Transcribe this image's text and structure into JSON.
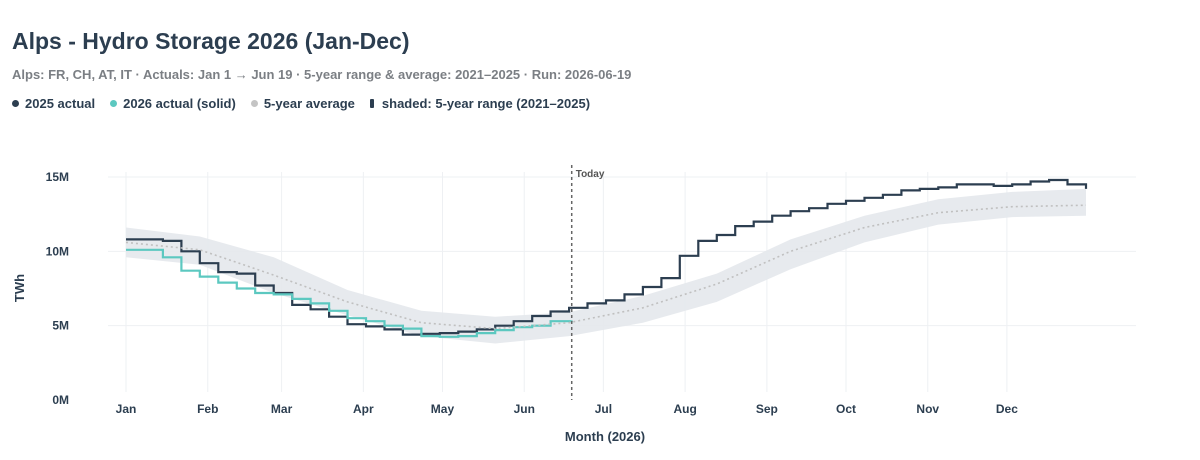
{
  "header": {
    "title": "Alps - Hydro Storage 2026 (Jan-Dec)",
    "subtitle": "Alps: FR, CH, AT, IT  ·  Actuals: Jan 1 → Jun 19  ·  5-year range & average: 2021–2025  ·  Run: 2026-06-19"
  },
  "legend": {
    "items": [
      {
        "label": "2025 actual",
        "color": "#2c3e50"
      },
      {
        "label": "2026 actual (solid)",
        "color": "#5cc8c0"
      },
      {
        "label": "5-year average",
        "color": "#c4c4c4"
      },
      {
        "label": "shaded: 5-year range (2021–2025)",
        "color": "#2c3e50"
      }
    ]
  },
  "colors": {
    "actual_2025": "#2c3e50",
    "actual_2026": "#5cc8c0",
    "average": "#c0c0c0",
    "range": "#e4e8ec",
    "grid": "#eef0f3",
    "today": "#666666"
  },
  "chart_data": {
    "type": "line",
    "xlabel": "Month (2026)",
    "ylabel": "TWh",
    "x_ticks": [
      "Jan",
      "Feb",
      "Mar",
      "Apr",
      "May",
      "Jun",
      "Jul",
      "Aug",
      "Sep",
      "Oct",
      "Nov",
      "Dec"
    ],
    "y_ticks": [
      "0M",
      "5M",
      "10M",
      "15M"
    ],
    "ylim": [
      0,
      15000000
    ],
    "xlim": [
      "2026-01-01",
      "2026-12-31"
    ],
    "grid": true,
    "today": {
      "date": "2026-06-19",
      "label": "Today"
    },
    "series": [
      {
        "name": "2025 actual",
        "step": true,
        "points": [
          [
            "2026-01-01",
            10800000
          ],
          [
            "2026-01-08",
            10800000
          ],
          [
            "2026-01-15",
            10700000
          ],
          [
            "2026-01-22",
            10000000
          ],
          [
            "2026-01-29",
            9200000
          ],
          [
            "2026-02-05",
            8600000
          ],
          [
            "2026-02-12",
            8500000
          ],
          [
            "2026-02-19",
            7700000
          ],
          [
            "2026-02-26",
            7200000
          ],
          [
            "2026-03-05",
            6400000
          ],
          [
            "2026-03-12",
            6100000
          ],
          [
            "2026-03-19",
            5600000
          ],
          [
            "2026-03-26",
            5100000
          ],
          [
            "2026-04-02",
            4950000
          ],
          [
            "2026-04-09",
            4750000
          ],
          [
            "2026-04-16",
            4400000
          ],
          [
            "2026-04-23",
            4450000
          ],
          [
            "2026-04-30",
            4500000
          ],
          [
            "2026-05-07",
            4600000
          ],
          [
            "2026-05-14",
            4750000
          ],
          [
            "2026-05-21",
            5000000
          ],
          [
            "2026-05-28",
            5300000
          ],
          [
            "2026-06-04",
            5650000
          ],
          [
            "2026-06-11",
            5950000
          ],
          [
            "2026-06-18",
            6200000
          ],
          [
            "2026-06-25",
            6500000
          ],
          [
            "2026-07-02",
            6700000
          ],
          [
            "2026-07-09",
            7100000
          ],
          [
            "2026-07-16",
            7600000
          ],
          [
            "2026-07-23",
            8200000
          ],
          [
            "2026-07-30",
            9700000
          ],
          [
            "2026-08-06",
            10700000
          ],
          [
            "2026-08-13",
            11100000
          ],
          [
            "2026-08-20",
            11700000
          ],
          [
            "2026-08-27",
            12000000
          ],
          [
            "2026-09-03",
            12400000
          ],
          [
            "2026-09-10",
            12700000
          ],
          [
            "2026-09-17",
            12900000
          ],
          [
            "2026-09-24",
            13200000
          ],
          [
            "2026-10-01",
            13400000
          ],
          [
            "2026-10-08",
            13600000
          ],
          [
            "2026-10-15",
            13800000
          ],
          [
            "2026-10-22",
            14100000
          ],
          [
            "2026-10-29",
            14200000
          ],
          [
            "2026-11-05",
            14300000
          ],
          [
            "2026-11-12",
            14500000
          ],
          [
            "2026-11-19",
            14500000
          ],
          [
            "2026-11-26",
            14400000
          ],
          [
            "2026-12-03",
            14500000
          ],
          [
            "2026-12-10",
            14700000
          ],
          [
            "2026-12-17",
            14800000
          ],
          [
            "2026-12-24",
            14500000
          ],
          [
            "2026-12-31",
            14200000
          ]
        ]
      },
      {
        "name": "2026 actual (solid)",
        "step": true,
        "points": [
          [
            "2026-01-01",
            10100000
          ],
          [
            "2026-01-08",
            10100000
          ],
          [
            "2026-01-15",
            9600000
          ],
          [
            "2026-01-22",
            8700000
          ],
          [
            "2026-01-29",
            8300000
          ],
          [
            "2026-02-05",
            7900000
          ],
          [
            "2026-02-12",
            7500000
          ],
          [
            "2026-02-19",
            7200000
          ],
          [
            "2026-02-26",
            7100000
          ],
          [
            "2026-03-05",
            6800000
          ],
          [
            "2026-03-12",
            6500000
          ],
          [
            "2026-03-19",
            6000000
          ],
          [
            "2026-03-26",
            5500000
          ],
          [
            "2026-04-02",
            5300000
          ],
          [
            "2026-04-09",
            5000000
          ],
          [
            "2026-04-16",
            4800000
          ],
          [
            "2026-04-23",
            4300000
          ],
          [
            "2026-04-30",
            4250000
          ],
          [
            "2026-05-07",
            4300000
          ],
          [
            "2026-05-14",
            4500000
          ],
          [
            "2026-05-21",
            4700000
          ],
          [
            "2026-05-28",
            4900000
          ],
          [
            "2026-06-04",
            5000000
          ],
          [
            "2026-06-11",
            5300000
          ],
          [
            "2026-06-19",
            5350000
          ]
        ]
      },
      {
        "name": "5-year average",
        "dashed": true,
        "points": [
          [
            "2026-01-01",
            10600000
          ],
          [
            "2026-01-29",
            10100000
          ],
          [
            "2026-02-26",
            8400000
          ],
          [
            "2026-03-26",
            6600000
          ],
          [
            "2026-04-23",
            5200000
          ],
          [
            "2026-05-21",
            4800000
          ],
          [
            "2026-06-18",
            5200000
          ],
          [
            "2026-07-16",
            6200000
          ],
          [
            "2026-08-13",
            7800000
          ],
          [
            "2026-09-10",
            10000000
          ],
          [
            "2026-10-08",
            11600000
          ],
          [
            "2026-11-05",
            12600000
          ],
          [
            "2026-12-03",
            13000000
          ],
          [
            "2026-12-31",
            13100000
          ]
        ]
      }
    ],
    "range_band": {
      "name": "5-year range (2021–2025)",
      "points": [
        [
          "2026-01-01",
          9600000,
          11600000
        ],
        [
          "2026-01-29",
          9100000,
          11000000
        ],
        [
          "2026-02-26",
          7200000,
          9600000
        ],
        [
          "2026-03-26",
          5700000,
          7400000
        ],
        [
          "2026-04-23",
          4300000,
          6000000
        ],
        [
          "2026-05-21",
          3800000,
          5600000
        ],
        [
          "2026-06-18",
          4300000,
          5900000
        ],
        [
          "2026-07-16",
          5200000,
          7000000
        ],
        [
          "2026-08-13",
          6600000,
          8500000
        ],
        [
          "2026-09-10",
          8800000,
          10800000
        ],
        [
          "2026-10-08",
          10600000,
          12400000
        ],
        [
          "2026-11-05",
          11800000,
          13500000
        ],
        [
          "2026-12-03",
          12300000,
          14000000
        ],
        [
          "2026-12-31",
          12400000,
          14200000
        ]
      ]
    }
  }
}
